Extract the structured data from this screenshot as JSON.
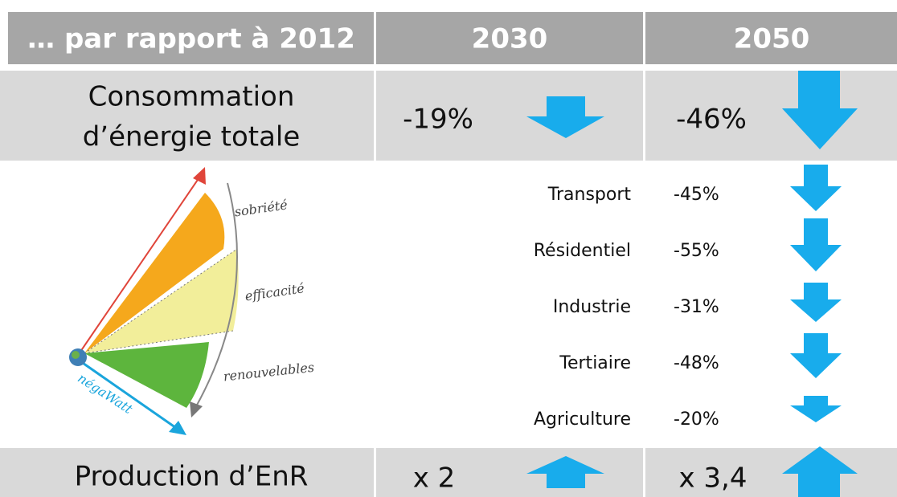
{
  "header": {
    "label": "… par rapport à 2012",
    "col2030": "2030",
    "col2050": "2050"
  },
  "total": {
    "label_lines": [
      "Consommation",
      "d’énergie totale"
    ],
    "v2030": "-19%",
    "v2050": "-46%"
  },
  "sectors": [
    {
      "name": "Transport",
      "value": "-45%"
    },
    {
      "name": "Résidentiel",
      "value": "-55%"
    },
    {
      "name": "Industrie",
      "value": "-31%"
    },
    {
      "name": "Tertiaire",
      "value": "-48%"
    },
    {
      "name": "Agriculture",
      "value": "-20%"
    }
  ],
  "production": {
    "label": "Production d’EnR",
    "v2030": "x 2",
    "v2050": "x 3,4"
  },
  "diagram": {
    "labels": [
      "sobriété",
      "efficacité",
      "renouvelables"
    ],
    "brand": "négaWatt"
  }
}
